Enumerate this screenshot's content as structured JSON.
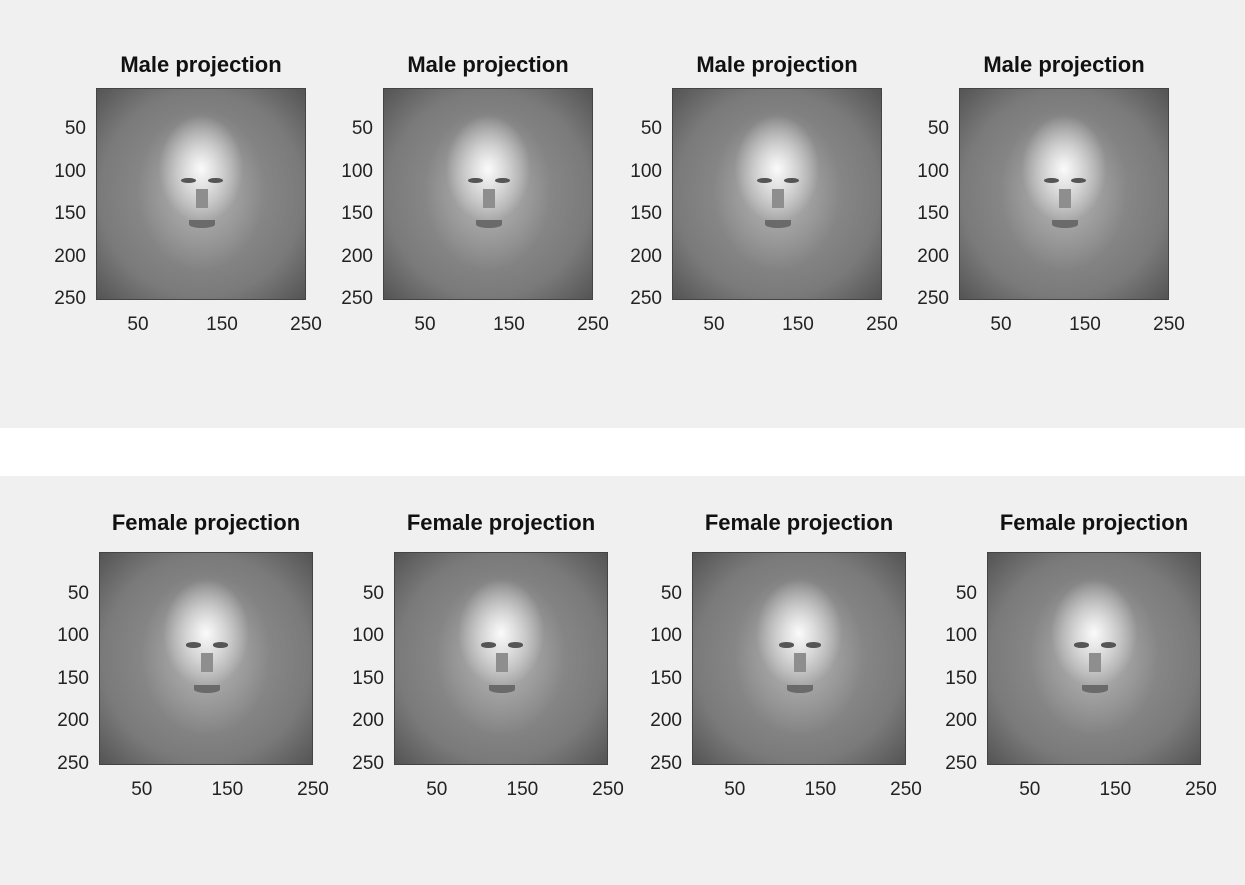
{
  "chart_data": [
    {
      "type": "heatmap",
      "title": "Male projection",
      "xticks": [
        "50",
        "150",
        "250"
      ],
      "yticks": [
        "50",
        "100",
        "150",
        "200",
        "250"
      ],
      "xlim": [
        0,
        250
      ],
      "ylim": [
        0,
        250
      ],
      "colormap": "gray",
      "content": "face image"
    },
    {
      "type": "heatmap",
      "title": "Male projection",
      "xticks": [
        "50",
        "150",
        "250"
      ],
      "yticks": [
        "50",
        "100",
        "150",
        "200",
        "250"
      ],
      "xlim": [
        0,
        250
      ],
      "ylim": [
        0,
        250
      ],
      "colormap": "gray",
      "content": "face image"
    },
    {
      "type": "heatmap",
      "title": "Male projection",
      "xticks": [
        "50",
        "150",
        "250"
      ],
      "yticks": [
        "50",
        "100",
        "150",
        "200",
        "250"
      ],
      "xlim": [
        0,
        250
      ],
      "ylim": [
        0,
        250
      ],
      "colormap": "gray",
      "content": "face image"
    },
    {
      "type": "heatmap",
      "title": "Male projection",
      "xticks": [
        "50",
        "150",
        "250"
      ],
      "yticks": [
        "50",
        "100",
        "150",
        "200",
        "250"
      ],
      "xlim": [
        0,
        250
      ],
      "ylim": [
        0,
        250
      ],
      "colormap": "gray",
      "content": "face image"
    },
    {
      "type": "heatmap",
      "title": "Female projection",
      "xticks": [
        "50",
        "150",
        "250"
      ],
      "yticks": [
        "50",
        "100",
        "150",
        "200",
        "250"
      ],
      "xlim": [
        0,
        250
      ],
      "ylim": [
        0,
        250
      ],
      "colormap": "gray",
      "content": "face image"
    },
    {
      "type": "heatmap",
      "title": "Female projection",
      "xticks": [
        "50",
        "150",
        "250"
      ],
      "yticks": [
        "50",
        "100",
        "150",
        "200",
        "250"
      ],
      "xlim": [
        0,
        250
      ],
      "ylim": [
        0,
        250
      ],
      "colormap": "gray",
      "content": "face image"
    },
    {
      "type": "heatmap",
      "title": "Female projection",
      "xticks": [
        "50",
        "150",
        "250"
      ],
      "yticks": [
        "50",
        "100",
        "150",
        "200",
        "250"
      ],
      "xlim": [
        0,
        250
      ],
      "ylim": [
        0,
        250
      ],
      "colormap": "gray",
      "content": "face image"
    },
    {
      "type": "heatmap",
      "title": "Female projection",
      "xticks": [
        "50",
        "150",
        "250"
      ],
      "yticks": [
        "50",
        "100",
        "150",
        "200",
        "250"
      ],
      "xlim": [
        0,
        250
      ],
      "ylim": [
        0,
        250
      ],
      "colormap": "gray",
      "content": "face image"
    }
  ],
  "colors": {
    "figure_background": "#f0f0f0",
    "page_background": "#ffffff",
    "text": "#222222"
  }
}
